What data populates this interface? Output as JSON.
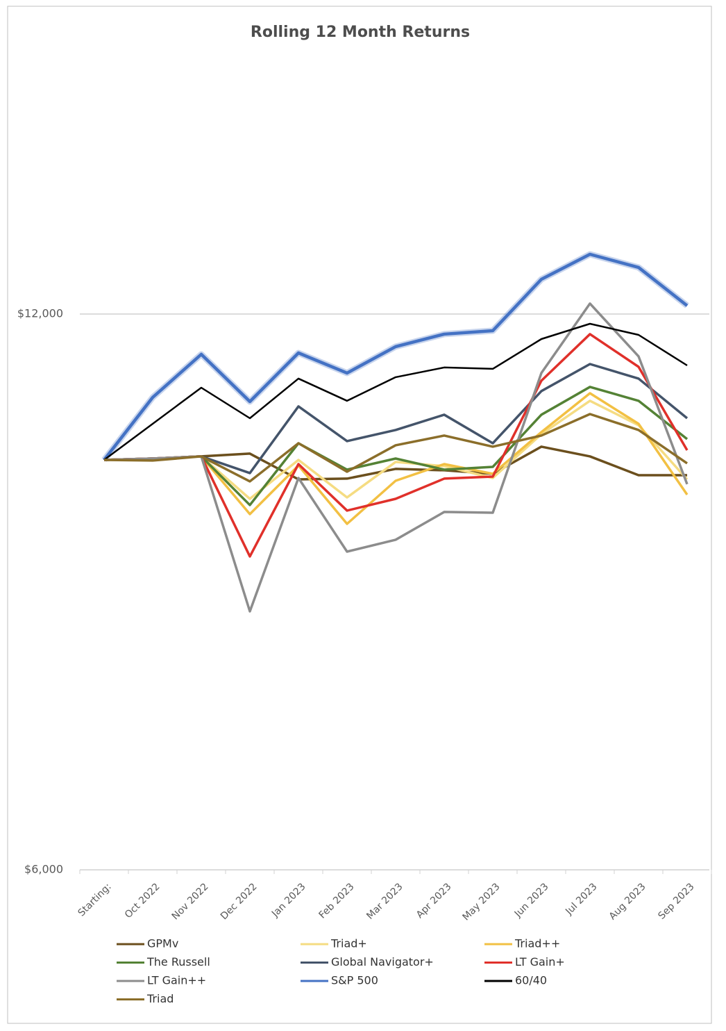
{
  "chart_data": {
    "type": "line",
    "title": "Rolling 12 Month Returns",
    "categories": [
      "Starting:",
      "Oct 2022",
      "Nov 2022",
      "Dec 2022",
      "Jan 2023",
      "Feb 2023",
      "Mar 2023",
      "Apr 2023",
      "May 2023",
      "Jun 2023",
      "Jul 2023",
      "Aug 2023",
      "Sep 2023"
    ],
    "ylim": [
      6000,
      15000
    ],
    "yticks": [
      {
        "value": 6000,
        "label": "$6,000"
      },
      {
        "value": 12000,
        "label": "$12,000"
      }
    ],
    "grid": true,
    "legend": "bottom",
    "series": [
      {
        "name": "GPMv",
        "color": "#6b4f1d",
        "values": [
          10425,
          10440,
          10463,
          10493,
          10215,
          10223,
          10328,
          10313,
          10275,
          10568,
          10463,
          10260,
          10260
        ]
      },
      {
        "name": "Triad+",
        "color": "#f5dc82",
        "values": [
          10425,
          10440,
          10463,
          10005,
          10425,
          10020,
          10403,
          10358,
          10230,
          10703,
          11063,
          10800,
          10215
        ]
      },
      {
        "name": "Triad++",
        "color": "#f2c043",
        "values": [
          10425,
          10440,
          10463,
          9840,
          10365,
          9735,
          10200,
          10380,
          10275,
          10725,
          11145,
          10815,
          10050
        ]
      },
      {
        "name": "The Russell",
        "color": "#548235",
        "values": [
          10425,
          10440,
          10463,
          9938,
          10605,
          10320,
          10440,
          10320,
          10350,
          10913,
          11213,
          11063,
          10650
        ]
      },
      {
        "name": "Global Navigator+",
        "color": "#44546a",
        "values": [
          10425,
          10440,
          10463,
          10283,
          11003,
          10628,
          10748,
          10913,
          10605,
          11168,
          11460,
          11303,
          10875
        ]
      },
      {
        "name": "LT Gain+",
        "color": "#e0302a",
        "values": [
          10425,
          10440,
          10463,
          9383,
          10380,
          9878,
          10005,
          10223,
          10245,
          11280,
          11783,
          11430,
          10530
        ]
      },
      {
        "name": "LT Gain++",
        "color": "#8c8c8c",
        "values": [
          10425,
          10440,
          10463,
          8790,
          10230,
          9435,
          9563,
          9863,
          9855,
          11363,
          12113,
          11543,
          10163
        ]
      },
      {
        "name": "S&P 500",
        "color": "#4472c4",
        "values": [
          10425,
          11100,
          11565,
          11055,
          11580,
          11363,
          11648,
          11783,
          11820,
          12375,
          12645,
          12503,
          12090
        ]
      },
      {
        "name": "60/40",
        "color": "#000000",
        "values": [
          10425,
          10815,
          11205,
          10875,
          11303,
          11063,
          11318,
          11423,
          11408,
          11730,
          11895,
          11775,
          11445
        ]
      },
      {
        "name": "Triad",
        "color": "#8b6e2a",
        "values": [
          10425,
          10418,
          10463,
          10193,
          10605,
          10298,
          10583,
          10688,
          10568,
          10688,
          10920,
          10748,
          10388
        ]
      }
    ]
  }
}
